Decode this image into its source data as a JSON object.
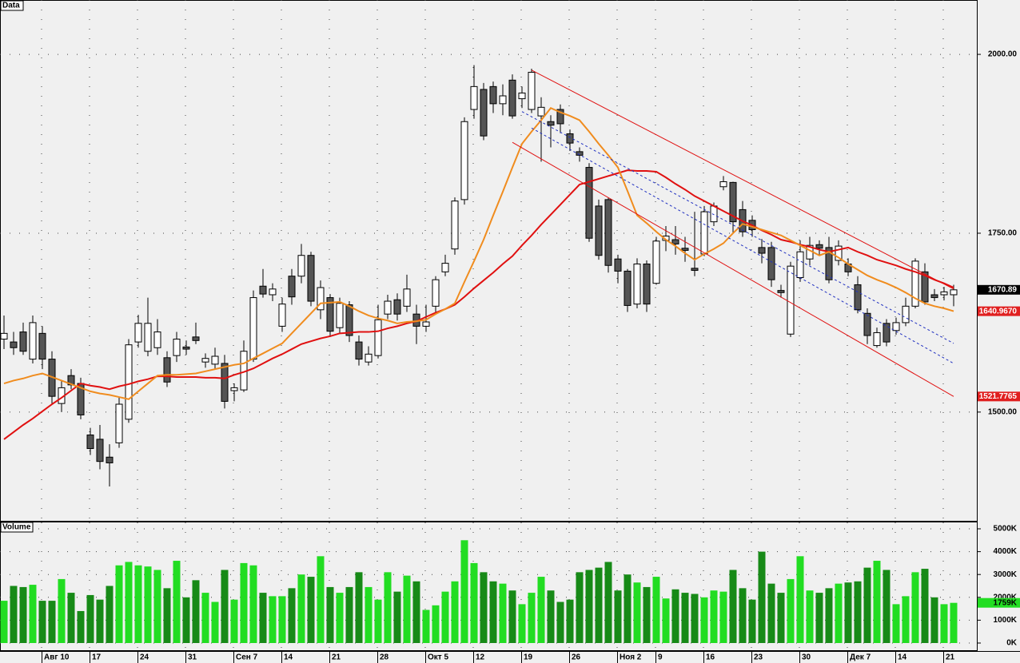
{
  "chart_data": [
    {
      "type": "candlestick",
      "title": "Data",
      "ylim": [
        1348,
        2076
      ],
      "yticks": [
        {
          "value": 2000,
          "label": "2000.00"
        },
        {
          "value": 1750,
          "label": "1750.00"
        },
        {
          "value": 1500,
          "label": "1500.00"
        }
      ],
      "grid": true,
      "up_color": "#ffffff",
      "down_color": "#555555",
      "open": [
        1602,
        1598,
        1612,
        1574,
        1610,
        1574,
        1512,
        1551,
        1540,
        1468,
        1462,
        1437,
        1457,
        1490,
        1598,
        1585,
        1590,
        1576,
        1579,
        1591,
        1605,
        1570,
        1567,
        1568,
        1530,
        1531,
        1574,
        1676,
        1664,
        1620,
        1690,
        1690,
        1719,
        1643,
        1660,
        1618,
        1650,
        1598,
        1570,
        1579,
        1637,
        1657,
        1648,
        1637,
        1620,
        1648,
        1696,
        1728,
        1797,
        1923,
        1951,
        1955,
        1931,
        1964,
        1938,
        1923,
        1914,
        1906,
        1923,
        1889,
        1864,
        1842,
        1788,
        1797,
        1714,
        1697,
        1651,
        1707,
        1680,
        1740,
        1741,
        1729,
        1701,
        1721,
        1766,
        1815,
        1821,
        1783,
        1768,
        1730,
        1730,
        1670,
        1609,
        1688,
        1714,
        1734,
        1730,
        1712,
        1707,
        1678,
        1638,
        1593,
        1624,
        1614,
        1625,
        1648,
        1696,
        1664,
        1664,
        1664
      ],
      "high": [
        1635,
        1612,
        1625,
        1635,
        1620,
        1585,
        1545,
        1560,
        1548,
        1478,
        1482,
        1455,
        1520,
        1602,
        1636,
        1660,
        1630,
        1585,
        1612,
        1600,
        1625,
        1582,
        1590,
        1580,
        1540,
        1600,
        1670,
        1700,
        1680,
        1660,
        1700,
        1735,
        1724,
        1684,
        1665,
        1660,
        1655,
        1607,
        1592,
        1650,
        1664,
        1666,
        1692,
        1650,
        1650,
        1690,
        1720,
        1800,
        1912,
        1985,
        1960,
        1962,
        1958,
        1972,
        1955,
        1980,
        1940,
        1915,
        1930,
        1895,
        1870,
        1848,
        1797,
        1800,
        1720,
        1700,
        1715,
        1712,
        1745,
        1760,
        1760,
        1745,
        1780,
        1788,
        1793,
        1830,
        1822,
        1795,
        1775,
        1742,
        1738,
        1678,
        1710,
        1740,
        1745,
        1740,
        1745,
        1740,
        1715,
        1690,
        1645,
        1618,
        1630,
        1632,
        1660,
        1715,
        1708,
        1672,
        1675,
        1678
      ],
      "low": [
        1588,
        1580,
        1580,
        1568,
        1560,
        1510,
        1500,
        1532,
        1490,
        1440,
        1420,
        1396,
        1450,
        1485,
        1590,
        1578,
        1580,
        1535,
        1570,
        1580,
        1595,
        1562,
        1560,
        1505,
        1515,
        1528,
        1570,
        1660,
        1655,
        1612,
        1650,
        1680,
        1648,
        1630,
        1605,
        1610,
        1598,
        1565,
        1565,
        1575,
        1630,
        1628,
        1640,
        1595,
        1612,
        1640,
        1690,
        1720,
        1790,
        1910,
        1880,
        1918,
        1915,
        1910,
        1925,
        1918,
        1850,
        1870,
        1890,
        1865,
        1850,
        1738,
        1713,
        1695,
        1680,
        1640,
        1645,
        1640,
        1678,
        1725,
        1720,
        1710,
        1690,
        1718,
        1760,
        1810,
        1750,
        1745,
        1745,
        1708,
        1675,
        1660,
        1605,
        1682,
        1705,
        1720,
        1680,
        1705,
        1690,
        1638,
        1595,
        1590,
        1592,
        1608,
        1620,
        1645,
        1650,
        1655,
        1656,
        1648
      ],
      "close": [
        1610,
        1590,
        1585,
        1625,
        1574,
        1522,
        1534,
        1538,
        1496,
        1449,
        1431,
        1429,
        1511,
        1594,
        1624,
        1624,
        1612,
        1542,
        1602,
        1588,
        1600,
        1575,
        1578,
        1515,
        1534,
        1585,
        1660,
        1665,
        1672,
        1651,
        1661,
        1719,
        1655,
        1674,
        1613,
        1652,
        1607,
        1574,
        1581,
        1629,
        1655,
        1637,
        1672,
        1620,
        1626,
        1685,
        1708,
        1795,
        1906,
        1955,
        1886,
        1931,
        1942,
        1914,
        1946,
        1975,
        1926,
        1901,
        1903,
        1876,
        1859,
        1743,
        1719,
        1705,
        1697,
        1649,
        1707,
        1651,
        1739,
        1746,
        1735,
        1726,
        1698,
        1780,
        1788,
        1822,
        1766,
        1752,
        1755,
        1722,
        1685,
        1667,
        1704,
        1724,
        1733,
        1729,
        1685,
        1732,
        1696,
        1643,
        1607,
        1611,
        1598,
        1625,
        1648,
        1711,
        1654,
        1660,
        1668,
        1670.89
      ],
      "lines": [
        {
          "color": "#e01010",
          "values": [
            1462,
            1472,
            1482,
            1491,
            1501,
            1511,
            1520,
            1530,
            1540,
            1537,
            1535,
            1532,
            1536,
            1539,
            1543,
            1546,
            1550,
            1550,
            1549,
            1549,
            1549,
            1548,
            1548,
            1547,
            1552,
            1556,
            1561,
            1568,
            1575,
            1581,
            1588,
            1595,
            1599,
            1603,
            1606,
            1610,
            1611,
            1612,
            1612,
            1613,
            1617,
            1620,
            1624,
            1627,
            1633,
            1639,
            1644,
            1650,
            1661,
            1673,
            1684,
            1695,
            1707,
            1718,
            1733,
            1747,
            1762,
            1776,
            1790,
            1804,
            1818,
            1822,
            1826,
            1830,
            1834,
            1838,
            1837,
            1837,
            1836,
            1828,
            1819,
            1811,
            1802,
            1795,
            1788,
            1781,
            1774,
            1767,
            1761,
            1754,
            1748,
            1741,
            1738,
            1734,
            1731,
            1727,
            1724,
            1727,
            1730,
            1724,
            1719,
            1713,
            1709,
            1705,
            1700,
            1696,
            1691,
            1685,
            1680,
            1674
          ]
        },
        {
          "color": "#f08c1e",
          "values": [
            1540,
            1544,
            1547,
            1551,
            1554,
            1549,
            1544,
            1539,
            1534,
            1529,
            1526,
            1524,
            1521,
            1518,
            1529,
            1540,
            1551,
            1552,
            1552,
            1553,
            1554,
            1557,
            1560,
            1563,
            1566,
            1568,
            1575,
            1582,
            1589,
            1596,
            1610,
            1624,
            1638,
            1652,
            1653,
            1654,
            1648,
            1641,
            1635,
            1631,
            1628,
            1624,
            1626,
            1627,
            1629,
            1637,
            1644,
            1652,
            1682,
            1711,
            1741,
            1775,
            1808,
            1842,
            1875,
            1892,
            1908,
            1925,
            1919,
            1914,
            1908,
            1892,
            1875,
            1859,
            1842,
            1809,
            1775,
            1764,
            1752,
            1741,
            1732,
            1722,
            1713,
            1721,
            1728,
            1736,
            1750,
            1763,
            1759,
            1755,
            1751,
            1747,
            1740,
            1733,
            1726,
            1719,
            1724,
            1716,
            1707,
            1699,
            1691,
            1685,
            1680,
            1674,
            1667,
            1659,
            1652,
            1648,
            1645,
            1641
          ]
        }
      ],
      "trend_lines": [
        {
          "color": "#e01010",
          "dashed": false,
          "from": [
            55,
            1978
          ],
          "to": [
            99,
            1672
          ]
        },
        {
          "color": "#e01010",
          "dashed": false,
          "from": [
            53,
            1877
          ],
          "to": [
            99,
            1521.7765
          ]
        },
        {
          "color": "#2030c0",
          "dashed": true,
          "from": [
            54,
            1920
          ],
          "to": [
            99,
            1596
          ]
        },
        {
          "color": "#2030c0",
          "dashed": true,
          "from": [
            55,
            1897
          ],
          "to": [
            99,
            1568
          ]
        }
      ],
      "last_labels": [
        {
          "value": 1670.89,
          "background": "#000000",
          "text_color": "#ffffff"
        },
        {
          "value": {
            "value": 1640.967,
            "label": "1640.9670"
          },
          "background": "#e02020",
          "text_color": "#ffffff"
        },
        {
          "value": 1521.7765,
          "background": "#e02020",
          "text_color": "#ffffff"
        }
      ]
    },
    {
      "type": "bar",
      "title": "Volume",
      "ylim": [
        -350,
        5280
      ],
      "yticks": [
        {
          "value": 5000,
          "label": "5000K"
        },
        {
          "value": 4000,
          "label": "4000K"
        },
        {
          "value": 3000,
          "label": "3000K"
        },
        {
          "value": 2000,
          "label": "2000K"
        },
        {
          "value": 1000,
          "label": "1000K"
        },
        {
          "value": 0,
          "label": "0K"
        }
      ],
      "grid": true,
      "up_color": "#22dd22",
      "down_color": "#178a17",
      "categories": [
        null,
        null,
        null,
        null,
        "Авг 10",
        null,
        null,
        null,
        null,
        "17",
        null,
        null,
        null,
        null,
        "24",
        null,
        null,
        null,
        null,
        "31",
        null,
        null,
        null,
        null,
        "Сен 7",
        null,
        null,
        null,
        null,
        "14",
        null,
        null,
        null,
        null,
        "21",
        null,
        null,
        null,
        null,
        "28",
        null,
        null,
        null,
        null,
        "Окт 5",
        null,
        null,
        null,
        null,
        "12",
        null,
        null,
        null,
        null,
        "19",
        null,
        null,
        null,
        null,
        "26",
        null,
        null,
        null,
        null,
        "Ноя 2",
        null,
        null,
        null,
        "9",
        null,
        null,
        null,
        null,
        "16",
        null,
        null,
        null,
        null,
        "23",
        null,
        null,
        null,
        null,
        "30",
        null,
        null,
        null,
        null,
        "Дек 7",
        null,
        null,
        null,
        null,
        "14",
        null,
        null,
        null,
        null,
        "21",
        null
      ],
      "values": [
        1850,
        2500,
        2450,
        2550,
        1850,
        1850,
        2800,
        2200,
        1400,
        2100,
        1900,
        2500,
        3400,
        3550,
        3400,
        3350,
        3200,
        2400,
        3600,
        2000,
        2750,
        2200,
        1800,
        3200,
        1900,
        3500,
        3400,
        2200,
        2050,
        2050,
        2400,
        3000,
        2900,
        3800,
        2450,
        2200,
        2450,
        3100,
        2450,
        1900,
        3100,
        2250,
        2950,
        2700,
        1450,
        1650,
        2250,
        2700,
        4500,
        3500,
        3100,
        2700,
        2600,
        2300,
        1700,
        2200,
        2900,
        2300,
        1800,
        1900,
        3100,
        3200,
        3300,
        3550,
        2300,
        3000,
        2650,
        2450,
        2900,
        1950,
        2350,
        2200,
        2150,
        2000,
        2300,
        2250,
        3200,
        2400,
        1900,
        4000,
        2600,
        2200,
        2800,
        3800,
        2300,
        2200,
        2400,
        2600,
        2650,
        2700,
        3300,
        3600,
        3200,
        1700,
        2050,
        3100,
        3250,
        2000,
        1700,
        1759
      ],
      "last_label": {
        "value": {
          "value": 1759,
          "label": "1759K"
        },
        "background": "#22dd22",
        "text_color": "#000000"
      }
    }
  ]
}
